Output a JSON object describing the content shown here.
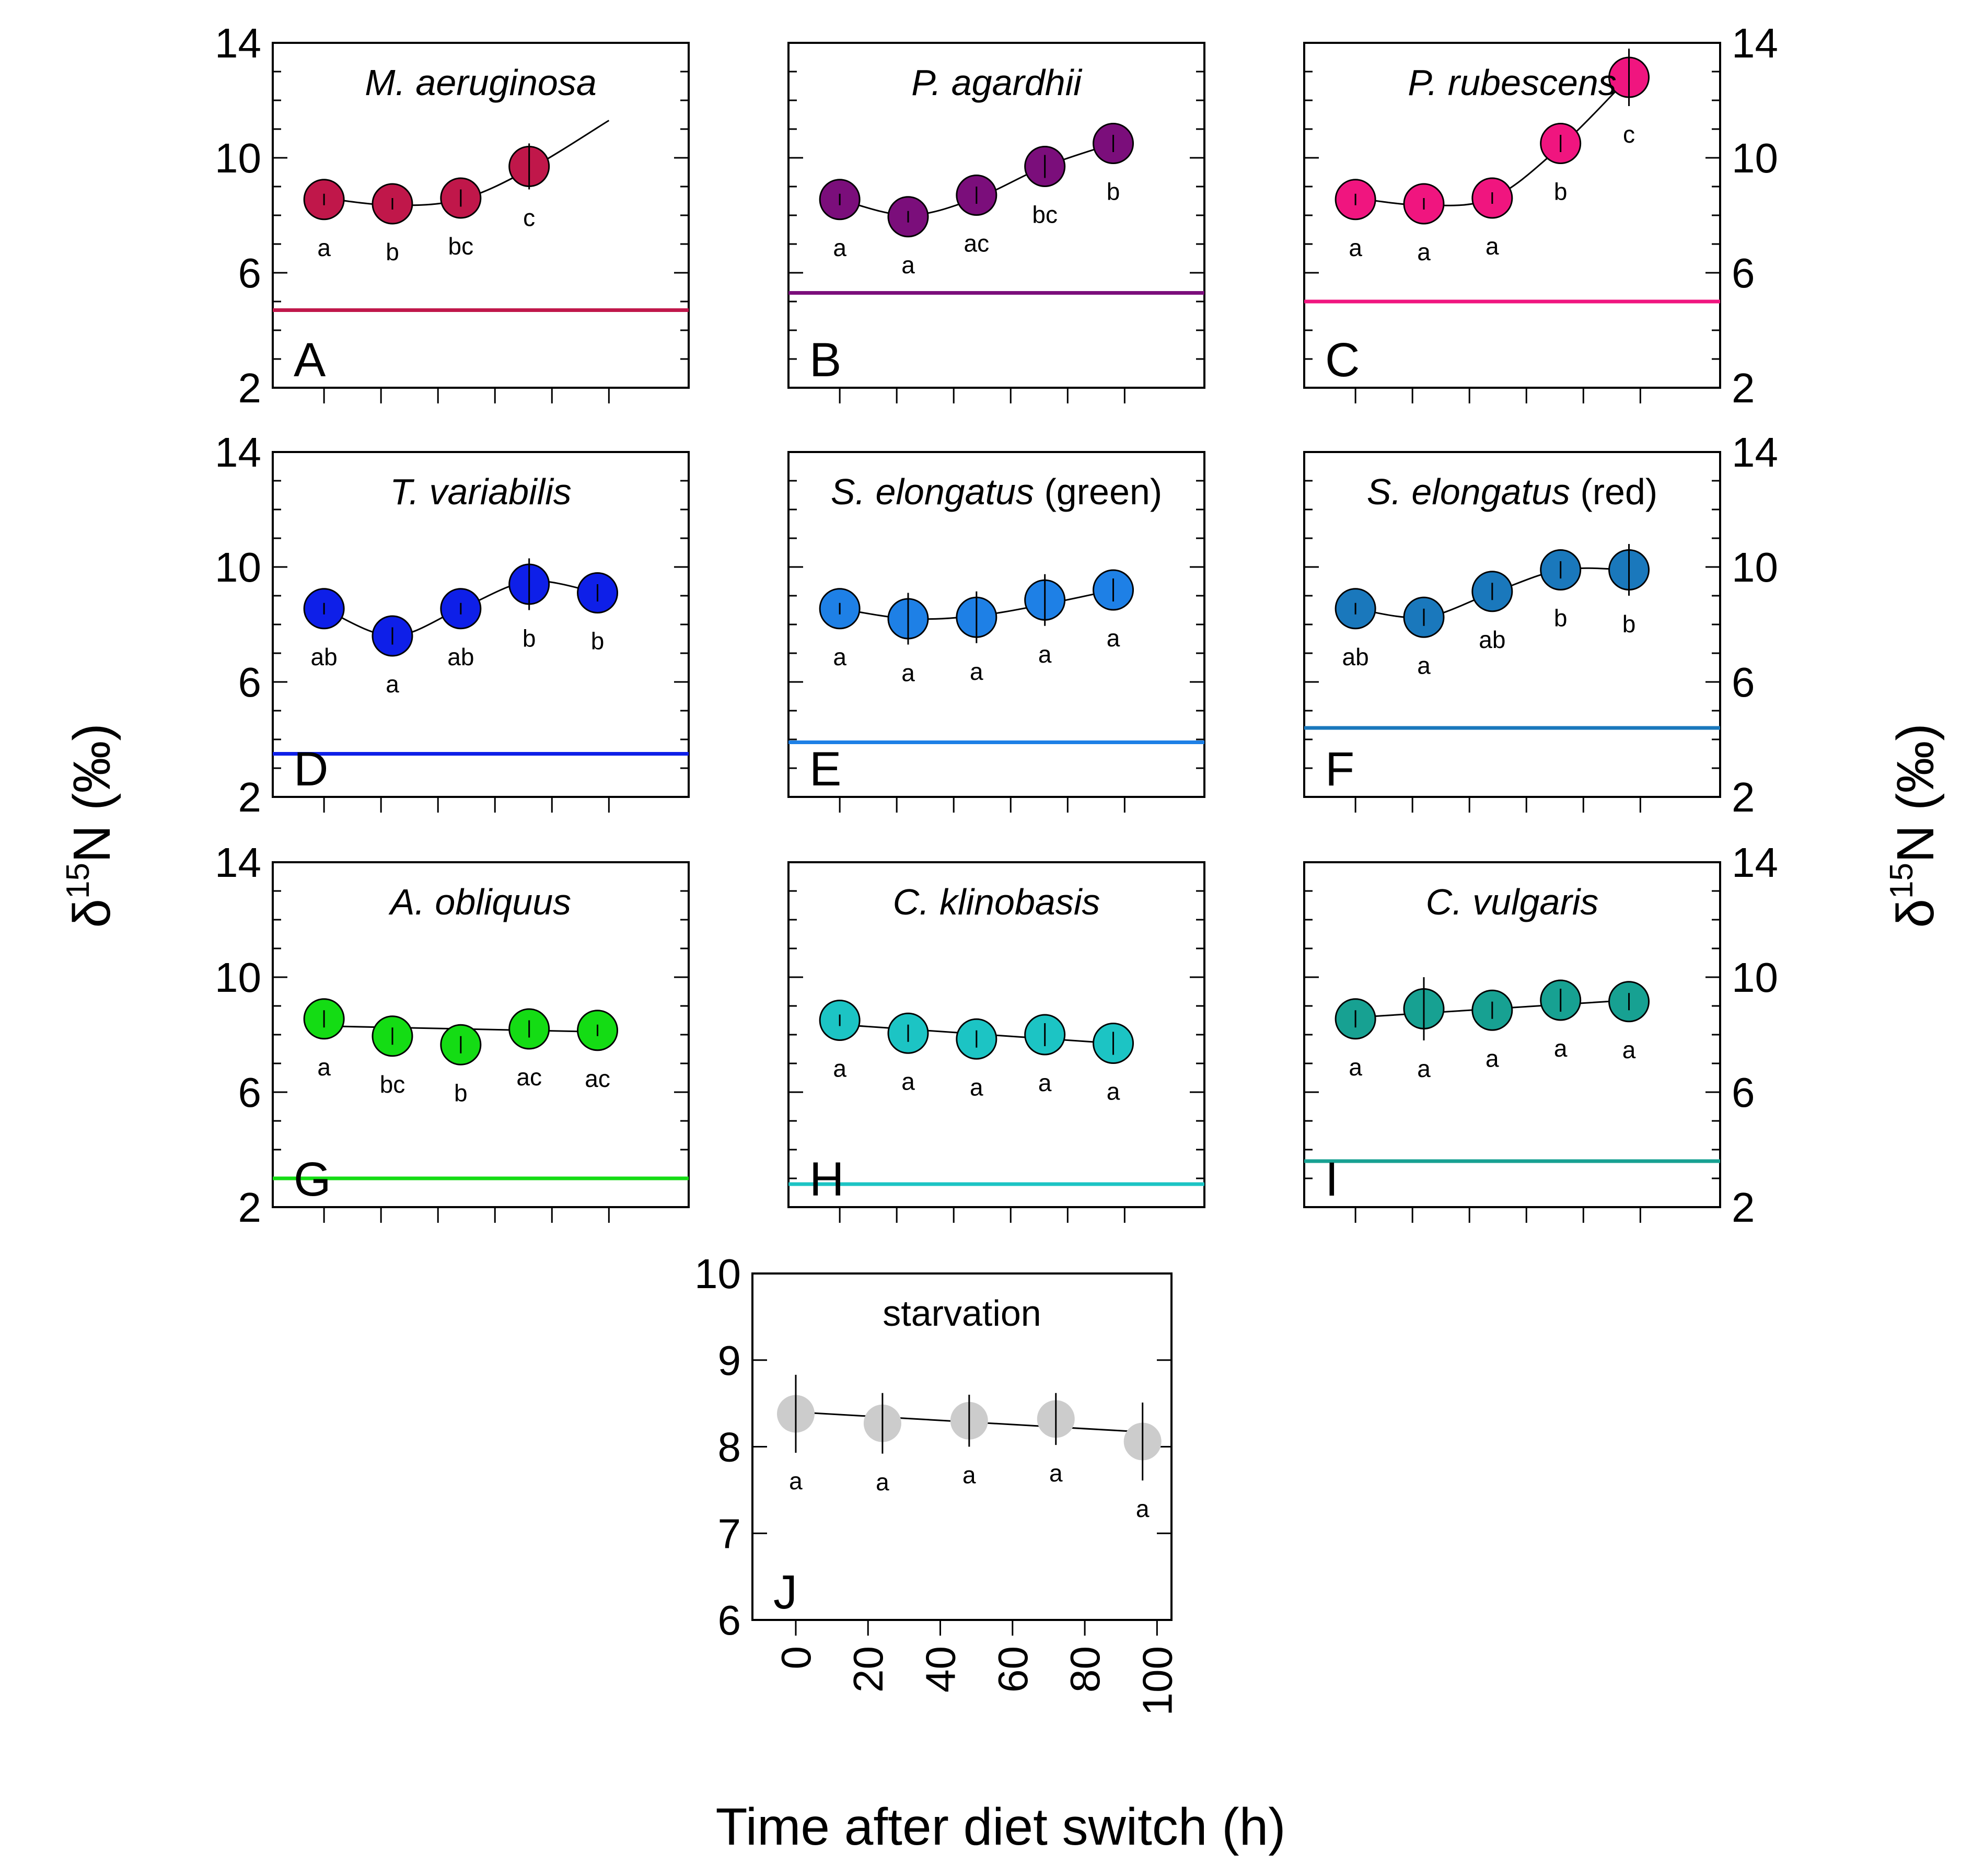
{
  "figure": {
    "y_label_base": "δ",
    "y_label_sup": "15",
    "y_label_rest": "N (‰)",
    "x_label": "Time after diet switch (h)"
  },
  "chart_data": [
    {
      "type": "scatter",
      "panel": "A",
      "title_italic": "M. aeruginosa",
      "title_normal": "",
      "color": "#C0174A",
      "baseline": 4.7,
      "x": [
        0,
        24,
        48,
        72
      ],
      "y": [
        8.55,
        8.4,
        8.6,
        9.7
      ],
      "err": [
        0.2,
        0.2,
        0.3,
        0.8
      ],
      "sig": [
        "a",
        "b",
        "bc",
        "c"
      ],
      "fit": {
        "x": [
          0,
          24,
          48,
          72,
          100
        ],
        "y": [
          8.6,
          8.35,
          8.55,
          9.6,
          11.3
        ]
      },
      "ylim": [
        2,
        14
      ],
      "yticks": [
        2,
        6,
        10,
        14
      ],
      "xlim": [
        -18,
        128
      ]
    },
    {
      "type": "scatter",
      "panel": "B",
      "title_italic": "P. agardhii",
      "title_normal": "",
      "color": "#7B0E7B",
      "baseline": 5.3,
      "x": [
        0,
        24,
        48,
        72,
        96
      ],
      "y": [
        8.55,
        7.95,
        8.7,
        9.7,
        10.5
      ],
      "err": [
        0.2,
        0.2,
        0.3,
        0.4,
        0.3
      ],
      "sig": [
        "a",
        "a",
        "ac",
        "bc",
        "b"
      ],
      "fit": {
        "x": [
          0,
          24,
          48,
          72,
          96
        ],
        "y": [
          8.55,
          8.0,
          8.6,
          9.7,
          10.5
        ]
      },
      "ylim": [
        2,
        14
      ],
      "yticks": [
        2,
        6,
        10,
        14
      ],
      "xlim": [
        -18,
        128
      ]
    },
    {
      "type": "scatter",
      "panel": "C",
      "title_italic": "P. rubescens",
      "title_normal": "",
      "color": "#F0157F",
      "baseline": 5.0,
      "x": [
        0,
        24,
        48,
        72,
        96
      ],
      "y": [
        8.55,
        8.4,
        8.6,
        10.5,
        12.8
      ],
      "err": [
        0.2,
        0.2,
        0.2,
        0.3,
        1.0
      ],
      "sig": [
        "a",
        "a",
        "a",
        "b",
        "c"
      ],
      "fit": {
        "x": [
          0,
          24,
          48,
          72,
          96
        ],
        "y": [
          8.6,
          8.35,
          8.6,
          10.4,
          12.8
        ]
      },
      "ylim": [
        2,
        14
      ],
      "yticks": [
        2,
        6,
        10,
        14
      ],
      "xlim": [
        -18,
        128
      ]
    },
    {
      "type": "scatter",
      "panel": "D",
      "title_italic": "T. variabilis",
      "title_normal": "",
      "color": "#0E1FE8",
      "baseline": 3.5,
      "x": [
        0,
        24,
        48,
        72,
        96
      ],
      "y": [
        8.55,
        7.6,
        8.55,
        9.4,
        9.1
      ],
      "err": [
        0.2,
        0.3,
        0.2,
        0.9,
        0.3
      ],
      "sig": [
        "ab",
        "a",
        "ab",
        "b",
        "b"
      ],
      "fit": {
        "x": [
          0,
          24,
          48,
          72,
          96
        ],
        "y": [
          8.55,
          7.6,
          8.55,
          9.5,
          9.1
        ]
      },
      "ylim": [
        2,
        14
      ],
      "yticks": [
        2,
        6,
        10,
        14
      ],
      "xlim": [
        -18,
        128
      ]
    },
    {
      "type": "scatter",
      "panel": "E",
      "title_italic": "S. elongatus",
      "title_normal": " (green)",
      "color": "#1E80E6",
      "baseline": 3.9,
      "x": [
        0,
        24,
        48,
        72,
        96
      ],
      "y": [
        8.55,
        8.2,
        8.25,
        8.85,
        9.2
      ],
      "err": [
        0.2,
        0.9,
        0.9,
        0.9,
        0.4
      ],
      "sig": [
        "a",
        "a",
        "a",
        "a",
        "a"
      ],
      "fit": {
        "x": [
          0,
          24,
          48,
          72,
          96
        ],
        "y": [
          8.55,
          8.2,
          8.3,
          8.7,
          9.2
        ]
      },
      "ylim": [
        2,
        14
      ],
      "yticks": [
        2,
        6,
        10,
        14
      ],
      "xlim": [
        -18,
        128
      ]
    },
    {
      "type": "scatter",
      "panel": "F",
      "title_italic": "S. elongatus",
      "title_normal": " (red)",
      "color": "#1A78BC",
      "baseline": 4.4,
      "x": [
        0,
        24,
        48,
        72,
        96
      ],
      "y": [
        8.55,
        8.25,
        9.15,
        9.9,
        9.9
      ],
      "err": [
        0.2,
        0.3,
        0.3,
        0.3,
        0.9
      ],
      "sig": [
        "ab",
        "a",
        "ab",
        "b",
        "b"
      ],
      "fit": {
        "x": [
          0,
          24,
          48,
          72,
          96
        ],
        "y": [
          8.55,
          8.25,
          9.1,
          9.9,
          9.9
        ]
      },
      "ylim": [
        2,
        14
      ],
      "yticks": [
        2,
        6,
        10,
        14
      ],
      "xlim": [
        -18,
        128
      ]
    },
    {
      "type": "scatter",
      "panel": "G",
      "title_italic": "A. obliquus",
      "title_normal": "",
      "color": "#14DC14",
      "baseline": 3.0,
      "x": [
        0,
        24,
        48,
        72,
        96
      ],
      "y": [
        8.55,
        7.95,
        7.65,
        8.2,
        8.15
      ],
      "err": [
        0.3,
        0.3,
        0.3,
        0.3,
        0.2
      ],
      "sig": [
        "a",
        "bc",
        "b",
        "ac",
        "ac"
      ],
      "fit": {
        "x": [
          0,
          96
        ],
        "y": [
          8.3,
          8.1
        ]
      },
      "ylim": [
        2,
        14
      ],
      "yticks": [
        2,
        6,
        10,
        14
      ],
      "xlim": [
        -18,
        128
      ]
    },
    {
      "type": "scatter",
      "panel": "H",
      "title_italic": "C. klinobasis",
      "title_normal": "",
      "color": "#1CC4C4",
      "baseline": 2.8,
      "x": [
        0,
        24,
        48,
        72,
        96
      ],
      "y": [
        8.5,
        8.05,
        7.85,
        8.0,
        7.7
      ],
      "err": [
        0.2,
        0.3,
        0.3,
        0.4,
        0.4
      ],
      "sig": [
        "a",
        "a",
        "a",
        "a",
        "a"
      ],
      "fit": {
        "x": [
          0,
          96
        ],
        "y": [
          8.35,
          7.7
        ]
      },
      "ylim": [
        2,
        14
      ],
      "yticks": [
        2,
        6,
        10,
        14
      ],
      "xlim": [
        -18,
        128
      ]
    },
    {
      "type": "scatter",
      "panel": "I",
      "title_italic": "C. vulgaris",
      "title_normal": "",
      "color": "#17A192",
      "baseline": 3.6,
      "x": [
        0,
        24,
        48,
        72,
        96
      ],
      "y": [
        8.55,
        8.9,
        8.85,
        9.2,
        9.15
      ],
      "err": [
        0.3,
        1.1,
        0.3,
        0.4,
        0.3
      ],
      "sig": [
        "a",
        "a",
        "a",
        "a",
        "a"
      ],
      "fit": {
        "x": [
          0,
          96
        ],
        "y": [
          8.6,
          9.2
        ]
      },
      "ylim": [
        2,
        14
      ],
      "yticks": [
        2,
        6,
        10,
        14
      ],
      "xlim": [
        -18,
        128
      ]
    },
    {
      "type": "scatter",
      "panel": "J",
      "title_italic": "",
      "title_normal": "starvation",
      "color": "#CCCCCC",
      "baseline": null,
      "x": [
        0,
        24,
        48,
        72,
        96
      ],
      "y": [
        8.38,
        8.27,
        8.3,
        8.32,
        8.06
      ],
      "err": [
        0.45,
        0.35,
        0.3,
        0.3,
        0.45
      ],
      "sig": [
        "a",
        "a",
        "a",
        "a",
        "a"
      ],
      "fit": {
        "x": [
          0,
          96
        ],
        "y": [
          8.4,
          8.17
        ]
      },
      "ylim": [
        6,
        10
      ],
      "yticks": [
        6,
        7,
        8,
        9,
        10
      ],
      "xlim": [
        -12,
        104
      ],
      "xticks": [
        0,
        20,
        40,
        60,
        80,
        100
      ],
      "xtick_labels": [
        "0",
        "20",
        "40",
        "60",
        "80",
        "100"
      ]
    }
  ]
}
